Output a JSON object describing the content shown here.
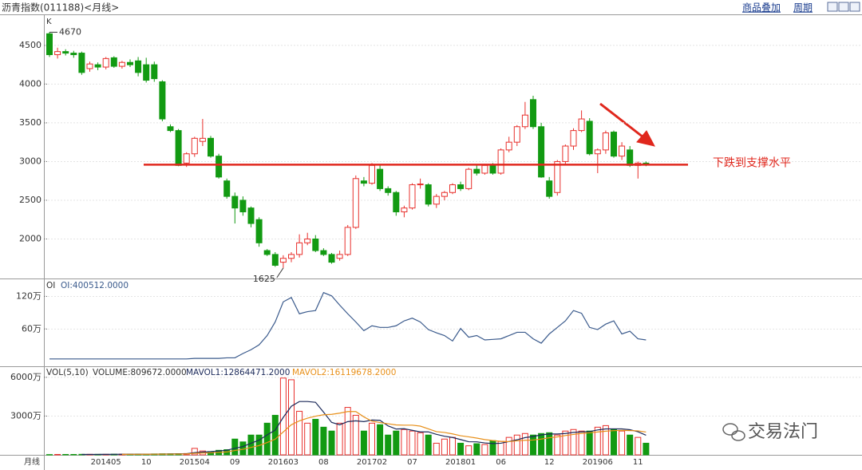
{
  "header": {
    "title": "沥青指数(011188)<月线>",
    "links": [
      "商品叠加",
      "周期"
    ]
  },
  "footer": {
    "period_label": "月线",
    "watermark": "交易法门"
  },
  "chart_data": [
    {
      "type": "candlestick",
      "label": "K",
      "categories": [
        null,
        null,
        null,
        null,
        null,
        null,
        null,
        "201405",
        null,
        null,
        null,
        null,
        "10",
        null,
        null,
        null,
        null,
        null,
        "201504",
        null,
        null,
        null,
        null,
        "09",
        null,
        null,
        null,
        null,
        null,
        "201603",
        null,
        null,
        null,
        null,
        "08",
        null,
        null,
        null,
        null,
        null,
        "201702",
        null,
        null,
        null,
        null,
        "07",
        null,
        null,
        null,
        null,
        null,
        "201801",
        null,
        null,
        null,
        null,
        "06",
        null,
        null,
        null,
        null,
        null,
        "12",
        null,
        null,
        null,
        null,
        null,
        "201906",
        null,
        null,
        null,
        null,
        "11",
        null
      ],
      "open": [
        4650,
        4380,
        4420,
        4400,
        4400,
        4200,
        4250,
        4220,
        4340,
        4230,
        4280,
        4300,
        4250,
        4250,
        4030,
        3450,
        3400,
        2980,
        3100,
        3260,
        3300,
        3070,
        2750,
        2550,
        2500,
        2400,
        2250,
        1850,
        1800,
        1700,
        1750,
        1800,
        1950,
        2000,
        1850,
        1800,
        1750,
        1800,
        2150,
        2750,
        2720,
        2900,
        2650,
        2600,
        2350,
        2400,
        2700,
        2700,
        2450,
        2550,
        2600,
        2700,
        2650,
        2900,
        2850,
        2950,
        2850,
        3150,
        3250,
        3450,
        3800,
        3450,
        2750,
        2600,
        3000,
        3200,
        3400,
        3520,
        3100,
        3150,
        3380,
        3070,
        3150,
        2950,
        2980
      ],
      "high": [
        4670,
        4470,
        4450,
        4430,
        4420,
        4290,
        4280,
        4350,
        4360,
        4300,
        4320,
        4350,
        4340,
        4290,
        4050,
        3480,
        3420,
        3120,
        3320,
        3550,
        3330,
        3100,
        2780,
        2600,
        2550,
        2420,
        2280,
        1870,
        1830,
        1790,
        1830,
        2060,
        2080,
        2050,
        1880,
        1820,
        1850,
        2180,
        2820,
        2800,
        2980,
        2960,
        2680,
        2620,
        2430,
        2720,
        2780,
        2720,
        2580,
        2620,
        2720,
        2740,
        2920,
        2960,
        2970,
        2980,
        3170,
        3320,
        3470,
        3770,
        3850,
        3500,
        2800,
        3020,
        3220,
        3430,
        3660,
        3560,
        3170,
        3400,
        3400,
        3250,
        3200,
        3000,
        3000
      ],
      "low": [
        4350,
        4330,
        4370,
        4340,
        4120,
        4160,
        4180,
        4190,
        4210,
        4200,
        4220,
        4100,
        4020,
        4030,
        3520,
        3380,
        2940,
        2930,
        3060,
        3200,
        3050,
        2780,
        2520,
        2200,
        2300,
        2150,
        1900,
        1780,
        1640,
        1625,
        1700,
        1760,
        1920,
        1830,
        1780,
        1680,
        1720,
        1780,
        2130,
        2680,
        2700,
        2620,
        2560,
        2300,
        2280,
        2380,
        2650,
        2420,
        2400,
        2500,
        2580,
        2620,
        2630,
        2820,
        2830,
        2830,
        2830,
        3120,
        3200,
        3420,
        3420,
        2790,
        2520,
        2560,
        2960,
        3150,
        3380,
        3080,
        2850,
        3100,
        3050,
        3020,
        2930,
        2780,
        2940
      ],
      "close": [
        4380,
        4420,
        4400,
        4380,
        4150,
        4260,
        4220,
        4330,
        4230,
        4280,
        4250,
        4150,
        4050,
        4070,
        3550,
        3400,
        2950,
        3100,
        3300,
        3300,
        3070,
        2800,
        2550,
        2400,
        2350,
        2200,
        1950,
        1800,
        1660,
        1750,
        1800,
        1950,
        2000,
        1850,
        1800,
        1700,
        1800,
        2150,
        2780,
        2720,
        2950,
        2650,
        2600,
        2350,
        2400,
        2700,
        2710,
        2450,
        2550,
        2600,
        2700,
        2650,
        2900,
        2850,
        2950,
        2850,
        3150,
        3250,
        3450,
        3600,
        3450,
        2800,
        2550,
        3000,
        3200,
        3400,
        3550,
        3100,
        3150,
        3370,
        3070,
        3200,
        2950,
        2980,
        2970
      ],
      "up_color": "#e8302c",
      "down_color": "#129a12",
      "ylim": [
        1500,
        4880
      ],
      "yticks": [
        2000,
        2500,
        3000,
        3500,
        4000,
        4500
      ],
      "grid": true,
      "support_level": 2960,
      "support_color": "#e0271d",
      "annotation": "下跌到支撑水平"
    },
    {
      "type": "line",
      "title": "OI",
      "series": [
        {
          "name": "OI:400512.0000",
          "color": "#3a5a8c",
          "values": [
            5,
            5,
            5,
            5,
            5,
            5,
            5,
            5,
            5,
            5,
            5,
            5,
            5,
            5,
            5,
            5,
            5,
            5,
            6,
            6,
            6,
            6,
            7,
            7,
            15,
            22,
            31,
            48,
            73,
            110,
            118,
            88,
            92,
            94,
            127,
            121,
            104,
            88,
            73,
            57,
            66,
            63,
            63,
            66,
            75,
            80,
            73,
            59,
            53,
            48,
            38,
            61,
            45,
            48,
            40,
            41,
            42,
            48,
            54,
            54,
            42,
            34,
            51,
            63,
            75,
            94,
            89,
            63,
            59,
            69,
            75,
            51,
            56,
            42,
            40
          ]
        }
      ],
      "ylim": [
        -7,
        150
      ],
      "yticks": [
        {
          "value": 60,
          "label": "60万"
        },
        {
          "value": 120,
          "label": "120万"
        }
      ],
      "grid": true
    },
    {
      "type": "bar",
      "title": "VOL(5,10)",
      "series": [
        {
          "name": "VOLUME:809672.0000",
          "color": "#333333",
          "values": [
            20,
            30,
            30,
            30,
            40,
            40,
            40,
            40,
            50,
            50,
            50,
            60,
            60,
            70,
            80,
            80,
            90,
            100,
            500,
            300,
            250,
            350,
            400,
            1220,
            1000,
            1530,
            1530,
            2450,
            3060,
            5940,
            5810,
            3370,
            2450,
            2750,
            2140,
            1840,
            2450,
            3670,
            3060,
            1840,
            2450,
            2330,
            1530,
            1840,
            1960,
            1840,
            1710,
            1530,
            900,
            1220,
            1350,
            900,
            700,
            860,
            800,
            1100,
            1040,
            1350,
            1530,
            1650,
            1530,
            1650,
            1710,
            1530,
            1840,
            1960,
            1840,
            1840,
            2140,
            2260,
            1960,
            1840,
            1530,
            1350,
            900
          ]
        },
        {
          "name": "MAVOL1:12864471.2000",
          "color": "#1c2a5a",
          "values": [
            null,
            null,
            null,
            null,
            30,
            34,
            36,
            38,
            42,
            46,
            48,
            50,
            54,
            58,
            64,
            70,
            76,
            84,
            170,
            214,
            248,
            300,
            360,
            504,
            644,
            900,
            1136,
            1546,
            1914,
            2902,
            3758,
            4126,
            4126,
            4064,
            3302,
            2510,
            2326,
            2570,
            2632,
            2572,
            2694,
            2670,
            2240,
            1998,
            2022,
            1900,
            1776,
            1776,
            1588,
            1440,
            1342,
            1180,
            1014,
            1006,
            922,
            872,
            900,
            1030,
            1164,
            1334,
            1420,
            1542,
            1614,
            1614,
            1652,
            1738,
            1776,
            1802,
            1924,
            2008,
            2008,
            2008,
            1946,
            1788,
            1516
          ]
        },
        {
          "name": "MAVOL2:16119678.2000",
          "color": "#e8901a",
          "values": [
            null,
            null,
            null,
            null,
            null,
            null,
            null,
            null,
            null,
            38,
            41,
            43,
            46,
            50,
            55,
            59,
            63,
            69,
            114,
            139,
            159,
            188,
            222,
            337,
            429,
            574,
            718,
            953,
            1209,
            1773,
            2329,
            2631,
            2836,
            2989,
            3102,
            3134,
            3226,
            3348,
            3348,
            2937,
            2602,
            2498,
            2405,
            2315,
            2297,
            2297,
            2223,
            2008,
            1793,
            1731,
            1621,
            1478,
            1395,
            1297,
            1181,
            1107,
            1040,
            1022,
            1085,
            1128,
            1146,
            1221,
            1322,
            1389,
            1493,
            1579,
            1659,
            1708,
            1769,
            1830,
            1873,
            1892,
            1874,
            1856,
            1762
          ]
        }
      ],
      "ylim": [
        0,
        6730
      ],
      "yticks": [
        {
          "value": 3000,
          "label": "3000万"
        },
        {
          "value": 6000,
          "label": "6000万"
        }
      ],
      "grid": true
    }
  ]
}
